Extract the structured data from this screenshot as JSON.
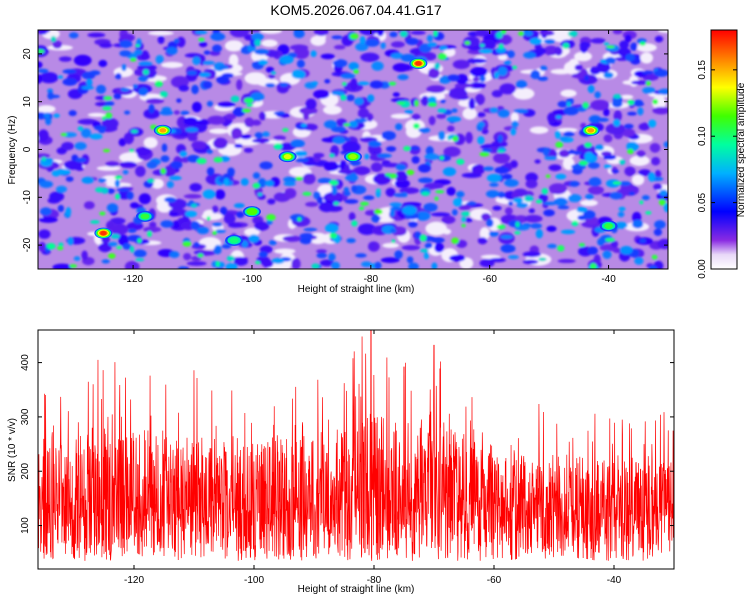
{
  "page": {
    "title": "KOM5.2026.067.04.41.G17"
  },
  "chart_data": [
    {
      "type": "heatmap",
      "title": "KOM5.2026.067.04.41.G17",
      "xlabel": "Height of straight line (km)",
      "ylabel": "Frequency (Hz)",
      "xlim": [
        -136,
        -30
      ],
      "ylim": [
        -25,
        25
      ],
      "x_ticks": [
        -120,
        -100,
        -80,
        -60,
        -40
      ],
      "y_ticks": [
        -20,
        -10,
        0,
        10,
        20
      ],
      "colorbar": {
        "label": "Normalized spectral amplitude",
        "range": [
          0,
          0.18
        ],
        "ticks": [
          0.0,
          0.05,
          0.1,
          0.15
        ],
        "tick_labels": [
          "0.00",
          "0.05",
          "0.10",
          "0.15"
        ],
        "colormap": [
          "#ffffff",
          "#8a2be2",
          "#0000ff",
          "#00ffff",
          "#00ff00",
          "#ffff00",
          "#ff8000",
          "#ff0000"
        ]
      },
      "peaks": [
        {
          "x": -125,
          "y": -17.5,
          "value": 0.17
        },
        {
          "x": -72,
          "y": 18,
          "value": 0.17
        },
        {
          "x": -115,
          "y": 4,
          "value": 0.15
        },
        {
          "x": -43,
          "y": 4,
          "value": 0.15
        },
        {
          "x": -94,
          "y": -1.5,
          "value": 0.13
        },
        {
          "x": -83,
          "y": -1.5,
          "value": 0.12
        },
        {
          "x": -100,
          "y": -13,
          "value": 0.11
        },
        {
          "x": -40,
          "y": -16,
          "value": 0.1
        },
        {
          "x": -118,
          "y": -14,
          "value": 0.1
        },
        {
          "x": -103,
          "y": -19,
          "value": 0.09
        }
      ]
    },
    {
      "type": "line",
      "xlabel": "Height of straight line (km)",
      "ylabel": "SNR (10 * v/v)",
      "xlim": [
        -136,
        -30
      ],
      "ylim": [
        20,
        460
      ],
      "x_ticks": [
        -120,
        -100,
        -80,
        -60,
        -40
      ],
      "y_ticks": [
        100,
        200,
        300,
        400
      ],
      "line_color": "#ff0000",
      "series": [
        {
          "name": "SNR",
          "x": [
            -136,
            -130,
            -124,
            -118,
            -112,
            -106,
            -100,
            -94,
            -88,
            -82,
            -76,
            -70,
            -64,
            -58,
            -52,
            -46,
            -40,
            -34,
            -30
          ],
          "baseline": [
            120,
            130,
            125,
            125,
            120,
            120,
            122,
            125,
            135,
            150,
            140,
            145,
            140,
            128,
            120,
            120,
            118,
            115,
            115
          ],
          "max_envelope": [
            380,
            370,
            410,
            385,
            390,
            350,
            360,
            370,
            400,
            450,
            425,
            440,
            370,
            335,
            330,
            320,
            310,
            325,
            300
          ]
        }
      ],
      "labeled_maxima": [
        {
          "x": -80.5,
          "value": 460
        },
        {
          "x": -82,
          "value": 448
        },
        {
          "x": -70,
          "value": 432
        },
        {
          "x": -126,
          "value": 405
        },
        {
          "x": -110,
          "value": 386
        },
        {
          "x": -75,
          "value": 392
        }
      ]
    }
  ]
}
